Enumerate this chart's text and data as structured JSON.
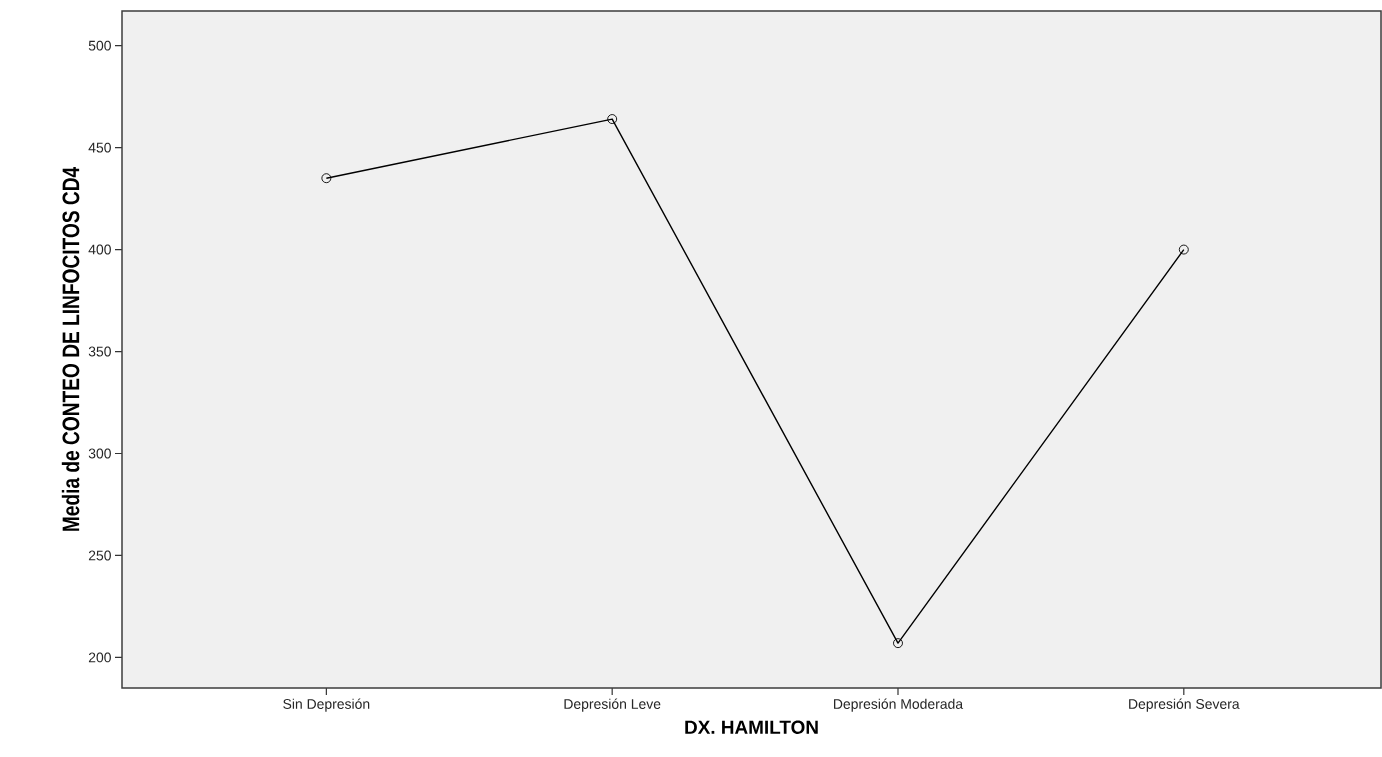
{
  "chart_data": {
    "type": "line",
    "xlabel": "DX. HAMILTON",
    "ylabel": "Media de CONTEO DE LINFOCITOS CD4",
    "categories": [
      "Sin Depresión",
      "Depresión Leve",
      "Depresión Moderada",
      "Depresión Severa"
    ],
    "values": [
      435,
      464,
      207,
      400
    ],
    "color": "#000000",
    "marker": "circle",
    "line_style": "solid",
    "ylim": [
      185,
      517
    ],
    "yticks": [
      200,
      250,
      300,
      350,
      400,
      450,
      500
    ],
    "grid": false
  }
}
